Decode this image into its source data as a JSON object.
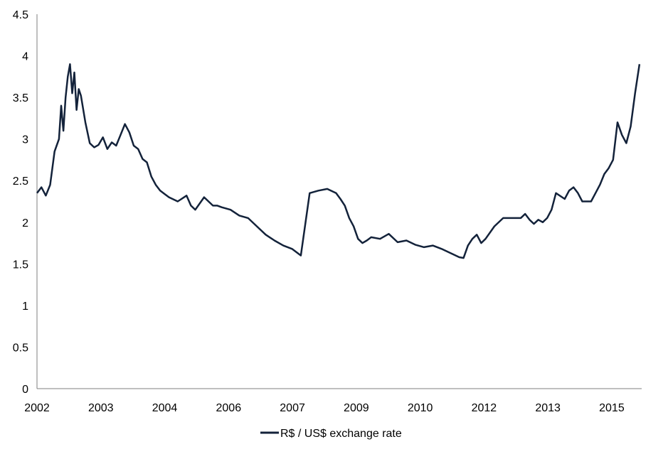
{
  "colors": {
    "series": "#13223a",
    "axis": "#7f7f7f",
    "background": "#ffffff"
  },
  "chart_data": {
    "type": "line",
    "title": "",
    "xlabel": "",
    "ylabel": "",
    "xlim": [
      2002.0,
      2015.75
    ],
    "ylim": [
      0,
      4.5
    ],
    "y_ticks": [
      0,
      0.5,
      1,
      1.5,
      2,
      2.5,
      3,
      3.5,
      4,
      4.5
    ],
    "y_tick_labels": [
      "0",
      "0.5",
      "1",
      "1.5",
      "2",
      "2.5",
      "3",
      "3.5",
      "4",
      "4.5"
    ],
    "x_tick_labels": [
      "2002",
      "2003",
      "2004",
      "2006",
      "2007",
      "2009",
      "2010",
      "2012",
      "2013",
      "2015"
    ],
    "grid": false,
    "legend_position": "bottom",
    "series": [
      {
        "name": "R$ / US$ exchange rate",
        "x": [
          2002.0,
          2002.1,
          2002.2,
          2002.3,
          2002.4,
          2002.5,
          2002.55,
          2002.6,
          2002.65,
          2002.7,
          2002.75,
          2002.8,
          2002.85,
          2002.9,
          2002.95,
          2003.0,
          2003.1,
          2003.2,
          2003.3,
          2003.4,
          2003.5,
          2003.6,
          2003.7,
          2003.8,
          2003.9,
          2004.0,
          2004.1,
          2004.2,
          2004.3,
          2004.4,
          2004.5,
          2004.6,
          2004.7,
          2004.8,
          2004.9,
          2005.0,
          2005.2,
          2005.4,
          2005.5,
          2005.6,
          2005.8,
          2006.0,
          2006.1,
          2006.2,
          2006.4,
          2006.6,
          2006.8,
          2007.0,
          2007.2,
          2007.4,
          2007.6,
          2007.8,
          2008.0,
          2008.2,
          2008.4,
          2008.6,
          2008.8,
          2008.9,
          2009.0,
          2009.1,
          2009.2,
          2009.3,
          2009.4,
          2009.5,
          2009.6,
          2009.8,
          2010.0,
          2010.2,
          2010.4,
          2010.6,
          2010.8,
          2011.0,
          2011.2,
          2011.4,
          2011.6,
          2011.7,
          2011.8,
          2011.9,
          2012.0,
          2012.1,
          2012.2,
          2012.4,
          2012.6,
          2012.8,
          2013.0,
          2013.1,
          2013.2,
          2013.3,
          2013.4,
          2013.5,
          2013.6,
          2013.7,
          2013.8,
          2014.0,
          2014.1,
          2014.2,
          2014.3,
          2014.4,
          2014.5,
          2014.6,
          2014.7,
          2014.8,
          2014.9,
          2015.0,
          2015.1,
          2015.2,
          2015.3,
          2015.4,
          2015.5,
          2015.6,
          2015.7
        ],
        "y": [
          2.35,
          2.42,
          2.32,
          2.45,
          2.85,
          3.0,
          3.4,
          3.1,
          3.5,
          3.75,
          3.9,
          3.55,
          3.8,
          3.35,
          3.6,
          3.52,
          3.2,
          2.95,
          2.9,
          2.93,
          3.02,
          2.88,
          2.96,
          2.92,
          3.05,
          3.18,
          3.08,
          2.92,
          2.88,
          2.76,
          2.72,
          2.55,
          2.45,
          2.38,
          2.34,
          2.3,
          2.25,
          2.32,
          2.2,
          2.15,
          2.3,
          2.2,
          2.2,
          2.18,
          2.15,
          2.08,
          2.05,
          1.95,
          1.85,
          1.78,
          1.72,
          1.68,
          1.6,
          2.35,
          2.38,
          2.4,
          2.35,
          2.28,
          2.2,
          2.05,
          1.95,
          1.8,
          1.75,
          1.78,
          1.82,
          1.8,
          1.86,
          1.76,
          1.78,
          1.73,
          1.7,
          1.72,
          1.68,
          1.63,
          1.58,
          1.57,
          1.72,
          1.8,
          1.85,
          1.75,
          1.8,
          1.95,
          2.05,
          2.05,
          2.05,
          2.1,
          2.03,
          1.98,
          2.03,
          2.0,
          2.05,
          2.15,
          2.35,
          2.28,
          2.38,
          2.42,
          2.35,
          2.25,
          2.25,
          2.25,
          2.35,
          2.45,
          2.58,
          2.65,
          2.75,
          3.2,
          3.05,
          2.95,
          3.15,
          3.55,
          3.9
        ]
      }
    ]
  }
}
